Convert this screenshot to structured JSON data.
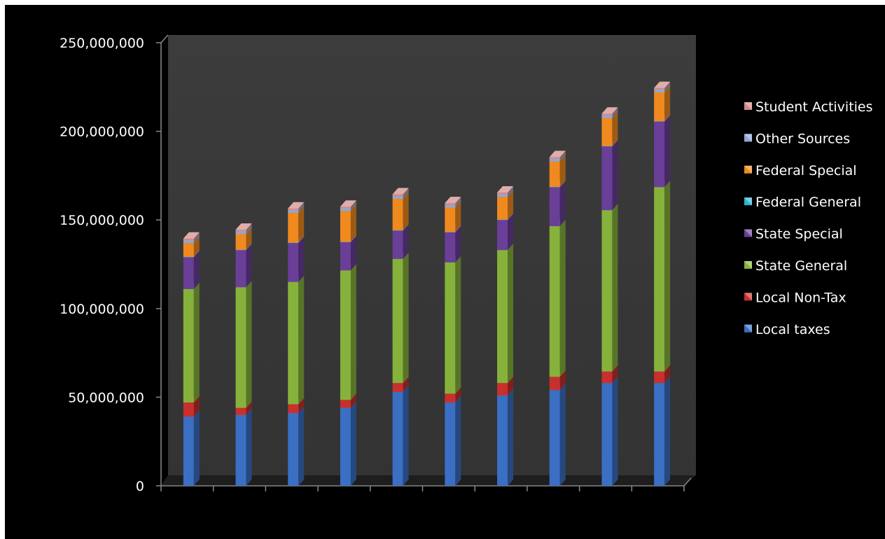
{
  "chart_data": {
    "type": "bar",
    "stacked": true,
    "style": "3d-column",
    "categories": [
      "",
      "",
      "",
      "",
      "",
      "",
      "",
      "",
      "",
      ""
    ],
    "yticks": [
      "0",
      "50,000,000",
      "100,000,000",
      "150,000,000",
      "200,000,000",
      "250,000,000"
    ],
    "ylim": [
      0,
      250000000
    ],
    "grid": false,
    "legend_position": "right",
    "background": "#000000",
    "plot_wall_color": "#3a3a3a",
    "series": [
      {
        "name": "Local taxes",
        "color": "#3a6fc4",
        "values": [
          39000000,
          40000000,
          41000000,
          44000000,
          53000000,
          47000000,
          51000000,
          54000000,
          58000000,
          58000000
        ]
      },
      {
        "name": "Local Non-Tax",
        "color": "#c8302d",
        "values": [
          8000000,
          4000000,
          5000000,
          4500000,
          5000000,
          5000000,
          7000000,
          7500000,
          6500000,
          6500000
        ]
      },
      {
        "name": "State General",
        "color": "#86b23c",
        "values": [
          64000000,
          68000000,
          69000000,
          73000000,
          70000000,
          74000000,
          75000000,
          85000000,
          91000000,
          104000000
        ]
      },
      {
        "name": "State Special",
        "color": "#6a3f98",
        "values": [
          18000000,
          21000000,
          22000000,
          16000000,
          16000000,
          17000000,
          17000000,
          22000000,
          36000000,
          37000000
        ]
      },
      {
        "name": "Federal General",
        "color": "#2fb5cf",
        "values": [
          200000,
          200000,
          200000,
          200000,
          200000,
          200000,
          200000,
          200000,
          200000,
          200000
        ]
      },
      {
        "name": "Federal Special",
        "color": "#f08a1e",
        "values": [
          7800000,
          8800000,
          16800000,
          17300000,
          17800000,
          13800000,
          12800000,
          14300000,
          15800000,
          16300000
        ]
      },
      {
        "name": "Other Sources",
        "color": "#8ea7d6",
        "values": [
          1500000,
          1500000,
          1500000,
          1500000,
          1500000,
          1500000,
          1500000,
          1500000,
          1500000,
          1500000
        ]
      },
      {
        "name": "Student Activities",
        "color": "#d28a86",
        "values": [
          1000000,
          1000000,
          1000000,
          1000000,
          1000000,
          1000000,
          1000000,
          1000000,
          1000000,
          1000000
        ]
      }
    ]
  }
}
